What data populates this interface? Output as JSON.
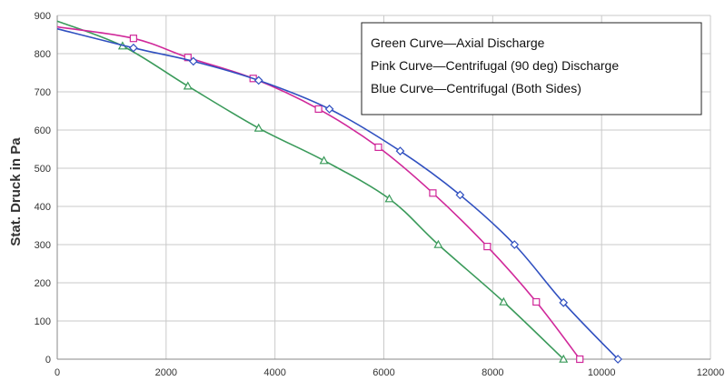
{
  "chart_data": {
    "type": "line",
    "ylabel": "Stat. Druck in Pa",
    "xlabel": "",
    "xlim": [
      0,
      12000
    ],
    "ylim": [
      0,
      900
    ],
    "x_ticks": [
      0,
      2000,
      4000,
      6000,
      8000,
      10000,
      12000
    ],
    "y_ticks": [
      0,
      100,
      200,
      300,
      400,
      500,
      600,
      700,
      800,
      900
    ],
    "x_tick_labels": [
      "0",
      "2000",
      "4000",
      "6000",
      "8000",
      "10000",
      "12000"
    ],
    "y_tick_labels": [
      "0",
      "100",
      "200",
      "300",
      "400",
      "500",
      "600",
      "700",
      "800",
      "900"
    ],
    "grid": true,
    "legend_position": "top-right",
    "legend_lines": [
      "Green Curve—Axial Discharge",
      "Pink Curve—Centrifugal (90 deg) Discharge",
      "Blue Curve—Centrifugal (Both Sides)"
    ],
    "series": [
      {
        "key": "green",
        "color": "#3a9a5a",
        "marker": "triangle",
        "x": [
          0,
          1200,
          2400,
          3700,
          4900,
          6100,
          7000,
          8200,
          9300
        ],
        "y": [
          885,
          820,
          715,
          605,
          520,
          420,
          300,
          150,
          0
        ]
      },
      {
        "key": "pink",
        "color": "#d0289a",
        "marker": "square",
        "x": [
          0,
          1400,
          2400,
          3600,
          4800,
          5900,
          6900,
          7900,
          8800,
          9600
        ],
        "y": [
          870,
          840,
          790,
          735,
          655,
          555,
          435,
          295,
          150,
          0
        ]
      },
      {
        "key": "blue",
        "color": "#3050c0",
        "marker": "diamond",
        "x": [
          0,
          1400,
          2500,
          3700,
          5000,
          6300,
          7400,
          8400,
          9300,
          10300
        ],
        "y": [
          865,
          815,
          780,
          730,
          655,
          545,
          430,
          300,
          148,
          0
        ]
      }
    ]
  }
}
